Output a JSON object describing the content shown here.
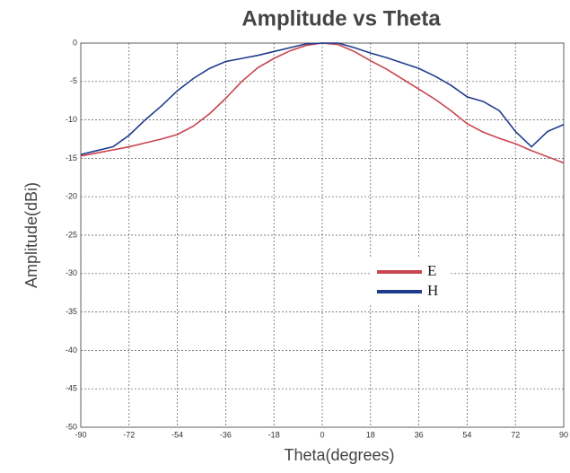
{
  "chart_data": {
    "type": "line",
    "title": "Amplitude vs Theta",
    "xlabel": "Theta(degrees)",
    "ylabel": "Amplitude(dBi)",
    "x": [
      -90,
      -84,
      -78,
      -72,
      -66,
      -60,
      -54,
      -48,
      -42,
      -36,
      -30,
      -24,
      -18,
      -12,
      -6,
      0,
      6,
      12,
      18,
      24,
      30,
      36,
      42,
      48,
      54,
      60,
      66,
      72,
      78,
      84,
      90
    ],
    "series": [
      {
        "name": "E",
        "color": "#c8444f",
        "values": [
          -14.7,
          -14.3,
          -13.9,
          -13.5,
          -13.0,
          -12.5,
          -11.9,
          -10.8,
          -9.2,
          -7.2,
          -5,
          -3.2,
          -2,
          -1,
          -0.3,
          0,
          -0.2,
          -1.1,
          -2.3,
          -3.4,
          -4.7,
          -6,
          -7.3,
          -8.8,
          -10.5,
          -11.6,
          -12.4,
          -13.1,
          -14,
          -14.8,
          -15.6
        ]
      },
      {
        "name": "H",
        "color": "#1f3c8c",
        "values": [
          -14.5,
          -14,
          -13.5,
          -12,
          -10,
          -8.2,
          -6.2,
          -4.6,
          -3.3,
          -2.4,
          -2,
          -1.6,
          -1.1,
          -0.6,
          -0.1,
          0,
          0,
          -0.6,
          -1.3,
          -1.9,
          -2.6,
          -3.3,
          -4.3,
          -5.5,
          -7,
          -7.6,
          -8.8,
          -11.5,
          -13.5,
          -11.5,
          -10.6
        ]
      }
    ],
    "xlim": [
      -90,
      90
    ],
    "xticks": [
      -90,
      -72,
      -54,
      -36,
      -18,
      0,
      18,
      36,
      54,
      72,
      90
    ],
    "ylim": [
      -50,
      0
    ],
    "yticks": [
      0,
      -5,
      -10,
      -15,
      -20,
      -25,
      -30,
      -35,
      -40,
      -45,
      -50
    ],
    "grid": true
  }
}
